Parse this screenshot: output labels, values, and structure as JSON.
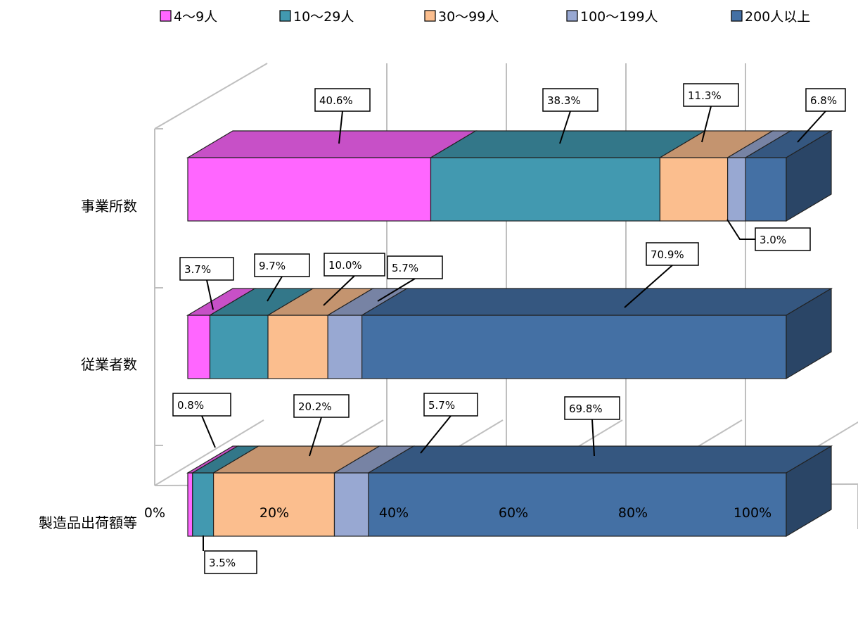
{
  "chart_data": {
    "type": "bar",
    "orientation": "horizontal",
    "stacked": "percent",
    "style": "3d",
    "title": "",
    "xlabel": "",
    "ylabel": "",
    "xlim": [
      0,
      100
    ],
    "x_ticks": [
      "0%",
      "20%",
      "40%",
      "60%",
      "80%",
      "100%"
    ],
    "grid": true,
    "legend": "top",
    "categories": [
      "事業所数",
      "従業者数",
      "製造品出荷額等"
    ],
    "series": [
      {
        "name": "4〜9人",
        "color": "#FF66FF",
        "values": [
          40.6,
          3.7,
          0.8
        ]
      },
      {
        "name": "10〜29人",
        "color": "#4299B0",
        "values": [
          38.3,
          9.7,
          3.5
        ]
      },
      {
        "name": "30〜99人",
        "color": "#FBBE8E",
        "values": [
          11.3,
          10.0,
          20.2
        ]
      },
      {
        "name": "100〜199人",
        "color": "#98A8D2",
        "values": [
          3.0,
          5.7,
          5.7
        ]
      },
      {
        "name": "200人以上",
        "color": "#4470A4",
        "values": [
          6.8,
          70.9,
          69.8
        ]
      }
    ],
    "data_labels": [
      [
        "40.6%",
        "38.3%",
        "11.3%",
        "3.0%",
        "6.8%"
      ],
      [
        "3.7%",
        "9.7%",
        "10.0%",
        "5.7%",
        "70.9%"
      ],
      [
        "0.8%",
        "3.5%",
        "20.2%",
        "5.7%",
        "69.8%"
      ]
    ]
  }
}
